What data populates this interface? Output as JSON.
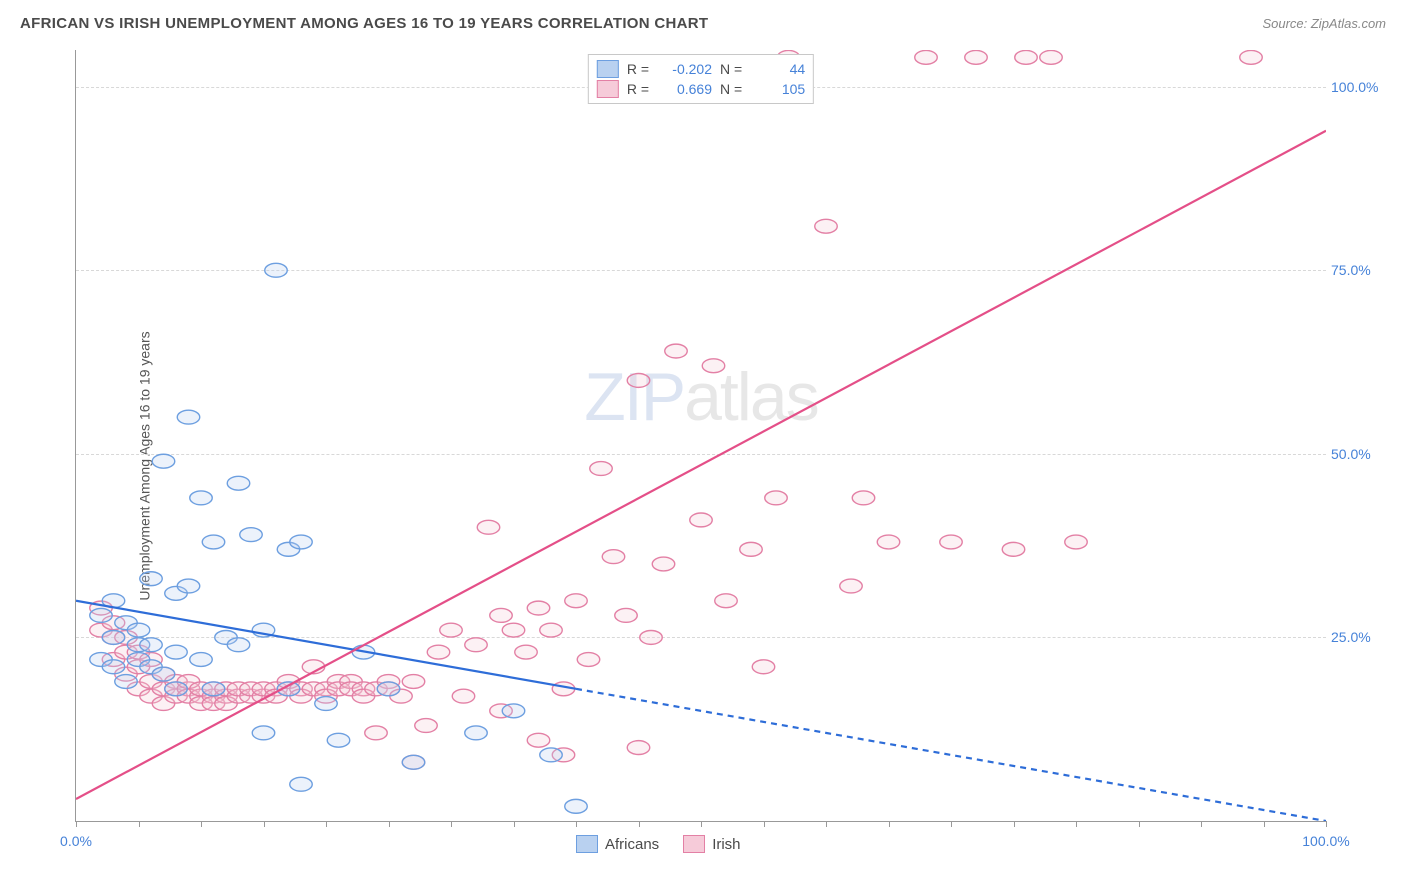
{
  "header": {
    "title": "AFRICAN VS IRISH UNEMPLOYMENT AMONG AGES 16 TO 19 YEARS CORRELATION CHART",
    "source": "Source: ZipAtlas.com"
  },
  "watermark": {
    "zip": "ZIP",
    "atlas": "atlas"
  },
  "chart": {
    "type": "scatter",
    "y_axis_label": "Unemployment Among Ages 16 to 19 years",
    "xlim": [
      0,
      100
    ],
    "ylim": [
      0,
      105
    ],
    "x_ticks_major": [
      0,
      100
    ],
    "x_ticks_minor_step": 5,
    "x_tick_labels": [
      "0.0%",
      "100.0%"
    ],
    "y_ticks": [
      25,
      50,
      75,
      100
    ],
    "y_tick_labels": [
      "25.0%",
      "50.0%",
      "75.0%",
      "100.0%"
    ],
    "grid_color": "#d8d8d8",
    "background_color": "#ffffff",
    "axis_color": "#999999",
    "tick_label_color": "#4682d8",
    "marker_radius": 9,
    "marker_stroke_width": 1.4,
    "marker_fill_opacity": 0.28,
    "line_width": 2.2,
    "series": {
      "africans": {
        "label": "Africans",
        "fill": "#b9d1f0",
        "stroke": "#6d9fe0",
        "line_color": "#2e6dd8",
        "R": "-0.202",
        "N": "44",
        "points": [
          [
            2,
            28
          ],
          [
            2,
            22
          ],
          [
            3,
            25
          ],
          [
            3,
            30
          ],
          [
            3,
            21
          ],
          [
            4,
            19
          ],
          [
            4,
            27
          ],
          [
            5,
            24
          ],
          [
            5,
            22
          ],
          [
            5,
            26
          ],
          [
            6,
            21
          ],
          [
            6,
            24
          ],
          [
            6,
            33
          ],
          [
            7,
            20
          ],
          [
            7,
            49
          ],
          [
            8,
            23
          ],
          [
            8,
            31
          ],
          [
            8,
            18
          ],
          [
            9,
            32
          ],
          [
            9,
            55
          ],
          [
            10,
            44
          ],
          [
            10,
            22
          ],
          [
            11,
            38
          ],
          [
            11,
            18
          ],
          [
            12,
            25
          ],
          [
            13,
            24
          ],
          [
            13,
            46
          ],
          [
            14,
            39
          ],
          [
            15,
            26
          ],
          [
            15,
            12
          ],
          [
            16,
            75
          ],
          [
            17,
            37
          ],
          [
            17,
            18
          ],
          [
            18,
            5
          ],
          [
            18,
            38
          ],
          [
            20,
            16
          ],
          [
            21,
            11
          ],
          [
            23,
            23
          ],
          [
            25,
            18
          ],
          [
            27,
            8
          ],
          [
            32,
            12
          ],
          [
            35,
            15
          ],
          [
            38,
            9
          ],
          [
            40,
            2
          ]
        ],
        "regression": {
          "x1": 0,
          "y1": 30,
          "x2": 40,
          "y2": 18,
          "x3": 100,
          "y3": 0,
          "dash_after_x": 40
        }
      },
      "irish": {
        "label": "Irish",
        "fill": "#f6cbd9",
        "stroke": "#e380a5",
        "line_color": "#e44f88",
        "R": "0.669",
        "N": "105",
        "points": [
          [
            2,
            29
          ],
          [
            2,
            26
          ],
          [
            3,
            25
          ],
          [
            3,
            22
          ],
          [
            3,
            27
          ],
          [
            4,
            20
          ],
          [
            4,
            23
          ],
          [
            4,
            25
          ],
          [
            5,
            21
          ],
          [
            5,
            18
          ],
          [
            5,
            23
          ],
          [
            6,
            19
          ],
          [
            6,
            22
          ],
          [
            6,
            17
          ],
          [
            7,
            18
          ],
          [
            7,
            20
          ],
          [
            7,
            16
          ],
          [
            8,
            17
          ],
          [
            8,
            19
          ],
          [
            8,
            18
          ],
          [
            9,
            18
          ],
          [
            9,
            17
          ],
          [
            9,
            19
          ],
          [
            10,
            17
          ],
          [
            10,
            18
          ],
          [
            10,
            16
          ],
          [
            11,
            17
          ],
          [
            11,
            18
          ],
          [
            11,
            16
          ],
          [
            12,
            17
          ],
          [
            12,
            16
          ],
          [
            12,
            18
          ],
          [
            13,
            17
          ],
          [
            13,
            18
          ],
          [
            14,
            17
          ],
          [
            14,
            18
          ],
          [
            15,
            17
          ],
          [
            15,
            18
          ],
          [
            16,
            18
          ],
          [
            16,
            17
          ],
          [
            17,
            18
          ],
          [
            17,
            19
          ],
          [
            18,
            18
          ],
          [
            18,
            17
          ],
          [
            19,
            18
          ],
          [
            19,
            21
          ],
          [
            20,
            18
          ],
          [
            20,
            17
          ],
          [
            21,
            19
          ],
          [
            21,
            18
          ],
          [
            22,
            19
          ],
          [
            22,
            18
          ],
          [
            23,
            18
          ],
          [
            23,
            17
          ],
          [
            24,
            18
          ],
          [
            24,
            12
          ],
          [
            25,
            19
          ],
          [
            25,
            18
          ],
          [
            26,
            17
          ],
          [
            27,
            19
          ],
          [
            27,
            8
          ],
          [
            28,
            13
          ],
          [
            29,
            23
          ],
          [
            30,
            26
          ],
          [
            31,
            17
          ],
          [
            32,
            24
          ],
          [
            33,
            40
          ],
          [
            34,
            28
          ],
          [
            34,
            15
          ],
          [
            35,
            26
          ],
          [
            36,
            23
          ],
          [
            37,
            29
          ],
          [
            37,
            11
          ],
          [
            38,
            26
          ],
          [
            39,
            18
          ],
          [
            39,
            9
          ],
          [
            40,
            30
          ],
          [
            41,
            22
          ],
          [
            42,
            48
          ],
          [
            43,
            36
          ],
          [
            44,
            28
          ],
          [
            45,
            60
          ],
          [
            46,
            25
          ],
          [
            47,
            35
          ],
          [
            48,
            64
          ],
          [
            50,
            41
          ],
          [
            51,
            62
          ],
          [
            52,
            30
          ],
          [
            54,
            37
          ],
          [
            55,
            21
          ],
          [
            56,
            44
          ],
          [
            57,
            104
          ],
          [
            60,
            81
          ],
          [
            62,
            32
          ],
          [
            63,
            44
          ],
          [
            65,
            38
          ],
          [
            68,
            104
          ],
          [
            70,
            38
          ],
          [
            72,
            104
          ],
          [
            75,
            37
          ],
          [
            76,
            104
          ],
          [
            78,
            104
          ],
          [
            80,
            38
          ],
          [
            94,
            104
          ],
          [
            45,
            10
          ]
        ],
        "regression": {
          "x1": 0,
          "y1": 3,
          "x2": 100,
          "y2": 94
        }
      }
    },
    "legend_top": [
      {
        "series": "africans",
        "R_label": "R =",
        "N_label": "N ="
      },
      {
        "series": "irish",
        "R_label": "R =",
        "N_label": "N ="
      }
    ],
    "legend_bottom": [
      {
        "series": "africans"
      },
      {
        "series": "irish"
      }
    ]
  }
}
